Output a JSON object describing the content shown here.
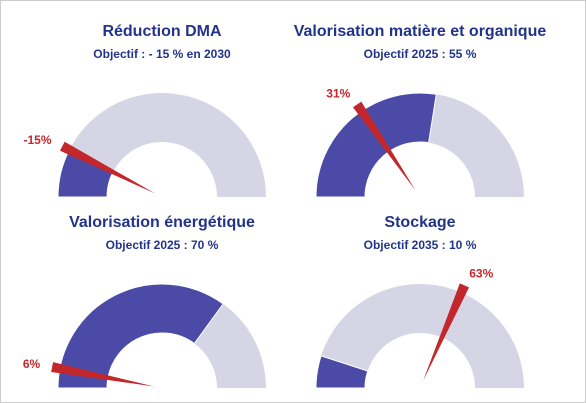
{
  "chart_data": [
    {
      "type": "gauge",
      "title": "Réduction DMA",
      "subtitle": "Objectif : - 15 % en 2030",
      "range": [
        0,
        -100
      ],
      "fill": -15,
      "needle": -15,
      "needle_label": "-15%",
      "fill_color": "#4b4aa6",
      "track_color": "#d5d5e6",
      "needle_color": "#c4272b"
    },
    {
      "type": "gauge",
      "title": "Valorisation matière et organique",
      "subtitle": "Objectif 2025 : 55 %",
      "range": [
        0,
        100
      ],
      "fill": 55,
      "needle": 31,
      "needle_label": "31%",
      "fill_color": "#4b4aa6",
      "track_color": "#d5d5e6",
      "needle_color": "#c4272b"
    },
    {
      "type": "gauge",
      "title": "Valorisation énergétique",
      "subtitle": "Objectif 2025 : 70 %",
      "range": [
        0,
        100
      ],
      "fill": 70,
      "needle": 6,
      "needle_label": "6%",
      "fill_color": "#4b4aa6",
      "track_color": "#d5d5e6",
      "needle_color": "#c4272b"
    },
    {
      "type": "gauge",
      "title": "Stockage",
      "subtitle": "Objectif 2035 : 10 %",
      "range": [
        0,
        100
      ],
      "fill": 10,
      "needle": 63,
      "needle_label": "63%",
      "fill_color": "#4b4aa6",
      "track_color": "#d5d5e6",
      "needle_color": "#c4272b"
    }
  ]
}
